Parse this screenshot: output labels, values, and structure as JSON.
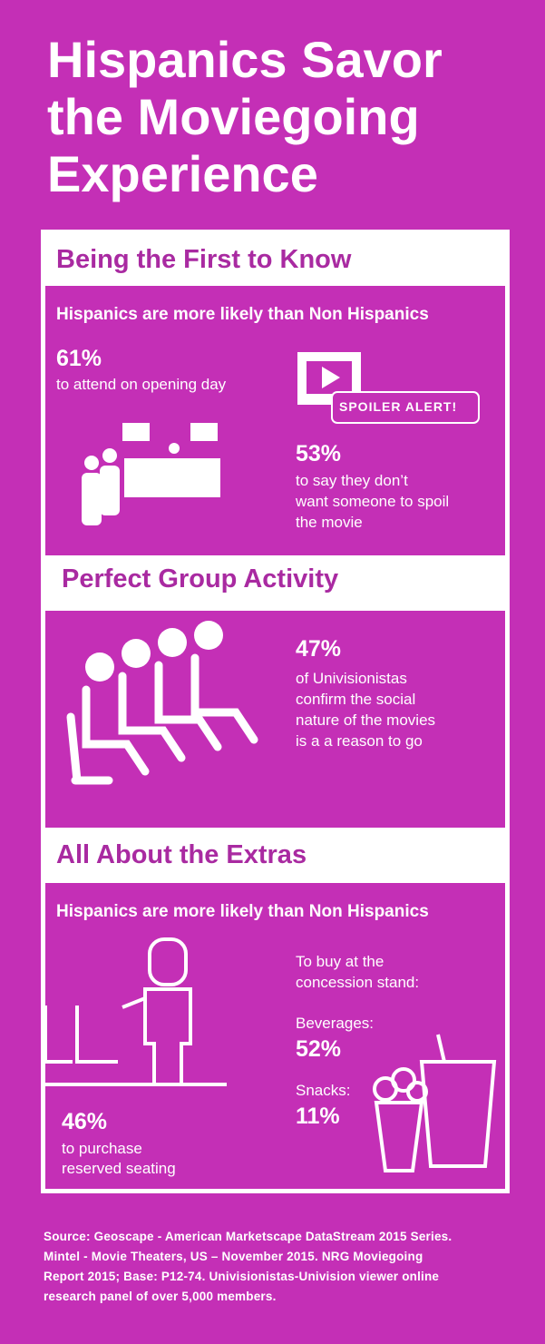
{
  "header": {
    "title": [
      "Hispanics Savor",
      "the Moviegoing",
      "Experience"
    ]
  },
  "sections": [
    {
      "heading": "Being the First to Know",
      "intro": "Hispanics are more likely than Non Hispanics",
      "badge": "SPOILER ALERT!",
      "stats": [
        {
          "value": "61%",
          "text": [
            "to attend on opening day"
          ]
        },
        {
          "value": "53%",
          "text": [
            "to say they don’t",
            "want someone to spoil",
            "the movie"
          ]
        }
      ]
    },
    {
      "heading": "Perfect Group Activity",
      "stats": [
        {
          "value": "47%",
          "text": [
            "of Univisionistas",
            "confirm the social",
            "nature of the movies",
            "is a a reason to go"
          ]
        }
      ]
    },
    {
      "heading": "All About the Extras",
      "intro": "Hispanics are more likely than Non Hispanics",
      "lead": [
        "To buy at the",
        "concession stand:"
      ],
      "stats": [
        {
          "value": "52%",
          "text": [
            "Beverages:"
          ]
        },
        {
          "value": "11%",
          "text": [
            "Snacks:"
          ]
        },
        {
          "value": "46%",
          "text": [
            "to purchase",
            "reserved seating"
          ]
        }
      ]
    }
  ],
  "source": [
    "Source:  Geoscape - American Marketscape DataStream 2015 Series.",
    "Mintel - Movie Theaters, US – November 2015. NRG Moviegoing",
    "Report 2015; Base: P12-74. Univisionistas-Univision viewer online",
    "research panel of over 5,000 members."
  ]
}
